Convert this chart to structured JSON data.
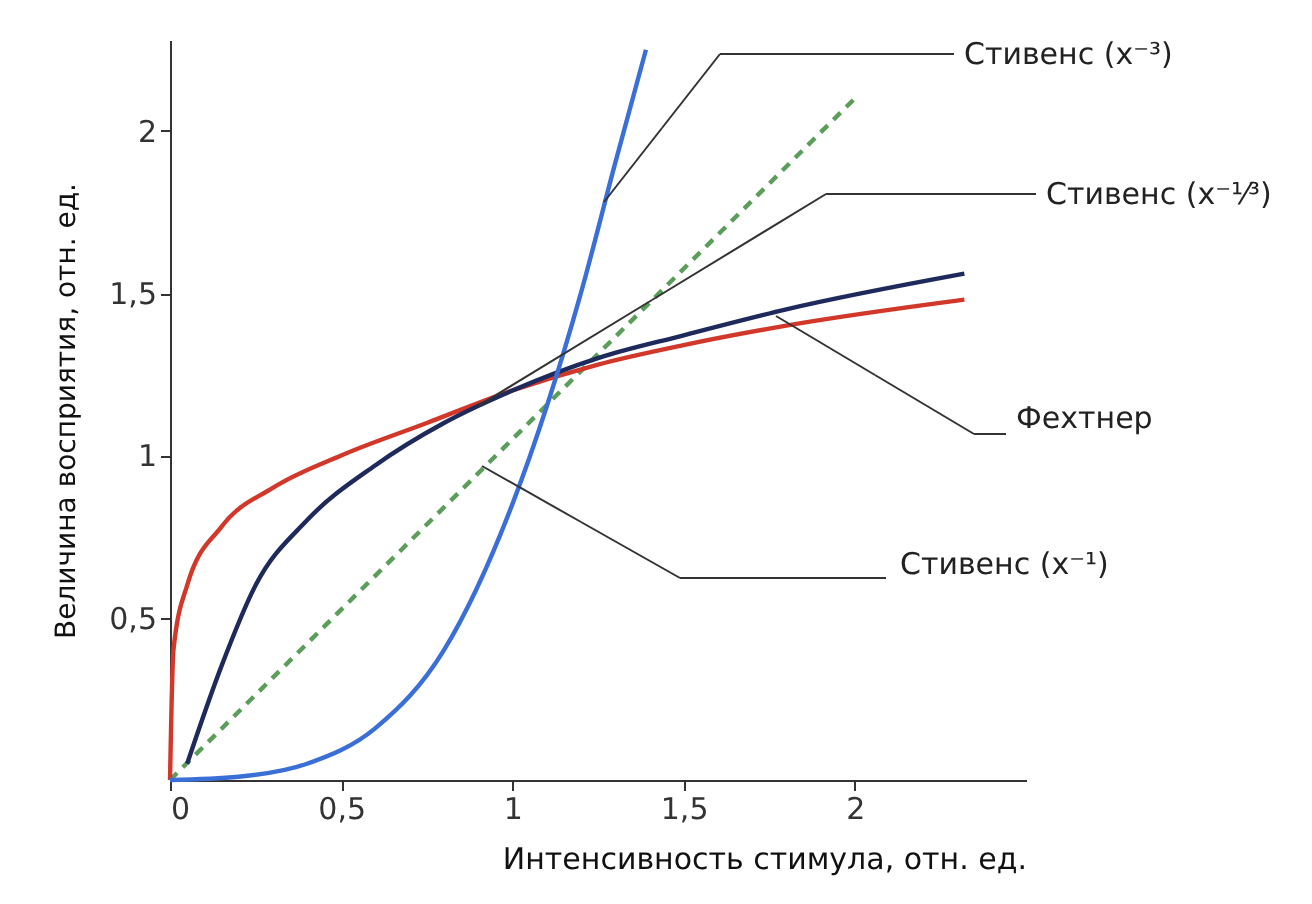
{
  "chart_data": {
    "type": "line",
    "xlabel": "Интенсивность стимула, отн. ед.",
    "ylabel": "Величина восприятия, отн. ед.",
    "xlim": [
      0,
      2.5
    ],
    "ylim": [
      0,
      2.28
    ],
    "xticks": [
      0,
      {
        "value": 0.5,
        "label": "0,5"
      },
      1,
      {
        "value": 1.5,
        "label": "1,5"
      },
      2
    ],
    "yticks": [
      {
        "value": 0.5,
        "label": "0,5"
      },
      1,
      {
        "value": 1.5,
        "label": "1,5"
      },
      2
    ],
    "grid": false,
    "marker": "none",
    "series": [
      {
        "color": "#5a9e5a",
        "line_style": "dashed",
        "x": [
          0,
          2
        ],
        "values": [
          0,
          2.1
        ]
      },
      {
        "color": "#d2382a",
        "line_style": "solid",
        "x": [
          0,
          0.01,
          0.05,
          0.15,
          0.3,
          0.5,
          0.75,
          1,
          1.25,
          1.5,
          1.8,
          2.32
        ],
        "values": [
          0,
          0.4,
          0.6,
          0.78,
          0.9,
          1.0,
          1.1,
          1.2,
          1.28,
          1.34,
          1.4,
          1.48
        ]
      },
      {
        "color": "#1f2a5c",
        "line_style": "solid",
        "x": [
          0.05,
          0.15,
          0.25,
          0.4,
          0.6,
          0.8,
          1,
          1.25,
          1.5,
          1.8,
          2.32
        ],
        "values": [
          0.05,
          0.35,
          0.6,
          0.8,
          0.97,
          1.1,
          1.2,
          1.3,
          1.37,
          1.45,
          1.56
        ]
      },
      {
        "color": "#3a6fd8",
        "line_style": "solid",
        "x": [
          0,
          0.2,
          0.4,
          0.6,
          0.8,
          1,
          1.1,
          1.2,
          1.3,
          1.39
        ],
        "values": [
          0,
          0.01,
          0.05,
          0.16,
          0.4,
          0.85,
          1.15,
          1.5,
          1.9,
          2.25
        ]
      }
    ],
    "annotations": [
      "Стивенс (x⁻³)",
      "Стивенс (x⁻¹⁄³)",
      "Фехтнер",
      "Стивенс (x⁻¹)"
    ]
  }
}
